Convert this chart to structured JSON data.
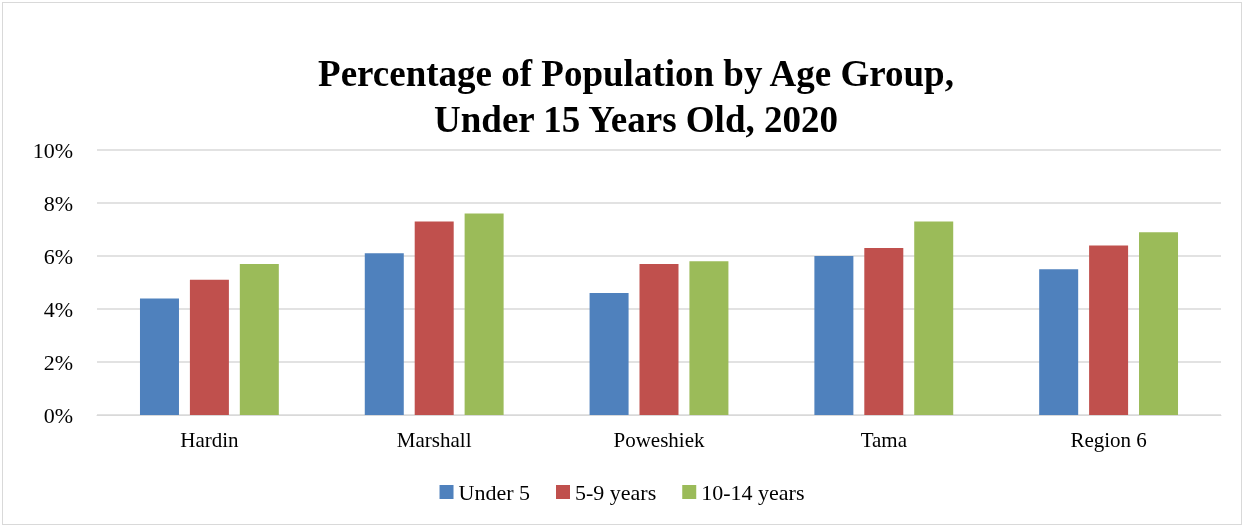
{
  "chart_data": {
    "type": "bar",
    "title": "Percentage of Population by Age Group,\nUnder 15 Years Old, 2020",
    "categories": [
      "Hardin",
      "Marshall",
      "Poweshiek",
      "Tama",
      "Region 6"
    ],
    "series": [
      {
        "name": "Under 5",
        "color": "#4f81bd",
        "values": [
          4.4,
          6.1,
          4.6,
          6.0,
          5.5
        ]
      },
      {
        "name": "5-9 years",
        "color": "#c0504d",
        "values": [
          5.1,
          7.3,
          5.7,
          6.3,
          6.4
        ]
      },
      {
        "name": "10-14 years",
        "color": "#9bbb59",
        "values": [
          5.7,
          7.6,
          5.8,
          7.3,
          6.9
        ]
      }
    ],
    "ylim": [
      0,
      10
    ],
    "yticks": [
      {
        "value": 0,
        "label": "0%"
      },
      {
        "value": 2,
        "label": "2%"
      },
      {
        "value": 4,
        "label": "4%"
      },
      {
        "value": 6,
        "label": "6%"
      },
      {
        "value": 8,
        "label": "8%"
      },
      {
        "value": 10,
        "label": "10%"
      }
    ],
    "grid": "y",
    "legend": "bottom"
  }
}
